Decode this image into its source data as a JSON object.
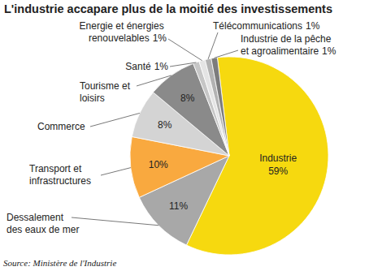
{
  "chart_data": {
    "type": "pie",
    "title": "L'industrie accapare plus de la moitié des investissements",
    "source": "Source: Ministère de l'Industrie",
    "categories": [
      "Industrie",
      "Dessalement des eaux de mer",
      "Transport et infrastructures",
      "Commerce",
      "Tourisme et loisirs",
      "Santé",
      "Energie et énergies renouvelables",
      "Télécommunications",
      "Industrie de la pêche et agroalimentaire"
    ],
    "values": [
      59,
      11,
      10,
      8,
      8,
      1,
      1,
      1,
      1
    ],
    "value_labels": [
      "59%",
      "11%",
      "10%",
      "8%",
      "8%",
      "1%",
      "1%",
      "1%",
      "1%"
    ],
    "colors": [
      "#f6d90f",
      "#a8a8a8",
      "#f9a93f",
      "#d4d4d4",
      "#8a8a8a",
      "#c6c6c6",
      "#e4e4e4",
      "#b2b2b2",
      "#7c7c7c"
    ],
    "data_labels": true
  }
}
